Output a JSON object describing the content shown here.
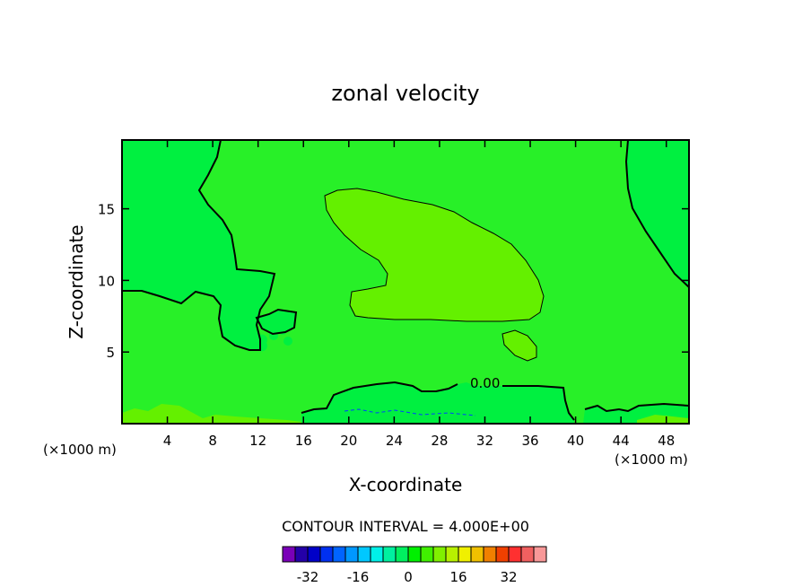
{
  "chart_data": {
    "type": "contour",
    "title": "zonal velocity",
    "xlabel": "X-coordinate",
    "ylabel": "Z-coordinate",
    "x_unit_left": "(×1000 m)",
    "x_unit_right": "(×1000 m)",
    "xlim": [
      0,
      50
    ],
    "ylim": [
      0,
      19.8
    ],
    "x_ticks": [
      4,
      8,
      12,
      16,
      20,
      24,
      28,
      32,
      36,
      40,
      44,
      48
    ],
    "y_ticks": [
      5,
      10,
      15
    ],
    "contour_label": "0.00",
    "contour_interval_text": "CONTOUR INTERVAL = 4.000E+00",
    "colorbar": {
      "levels": [
        -36,
        -32,
        -28,
        -24,
        -20,
        -16,
        -12,
        -8,
        -4,
        0,
        4,
        8,
        12,
        16,
        20,
        24,
        28,
        32,
        36
      ],
      "tick_labels": [
        "-32",
        "-16",
        "0",
        "16",
        "32"
      ],
      "tick_values": [
        -32,
        -16,
        0,
        16,
        32
      ],
      "colors": [
        "#7a00b8",
        "#2400a8",
        "#0000c8",
        "#0030f0",
        "#0064ff",
        "#0098ff",
        "#00c8ff",
        "#00f0e8",
        "#00f0a0",
        "#00f060",
        "#00f000",
        "#40f000",
        "#80f000",
        "#b8f000",
        "#f0f000",
        "#f0c000",
        "#f08000",
        "#f04000",
        "#ff3030",
        "#f06060",
        "#f89898"
      ]
    },
    "regions": {
      "background_color": "#28f028",
      "positive_color": "#64f000",
      "negative_color": "#00f040"
    }
  }
}
